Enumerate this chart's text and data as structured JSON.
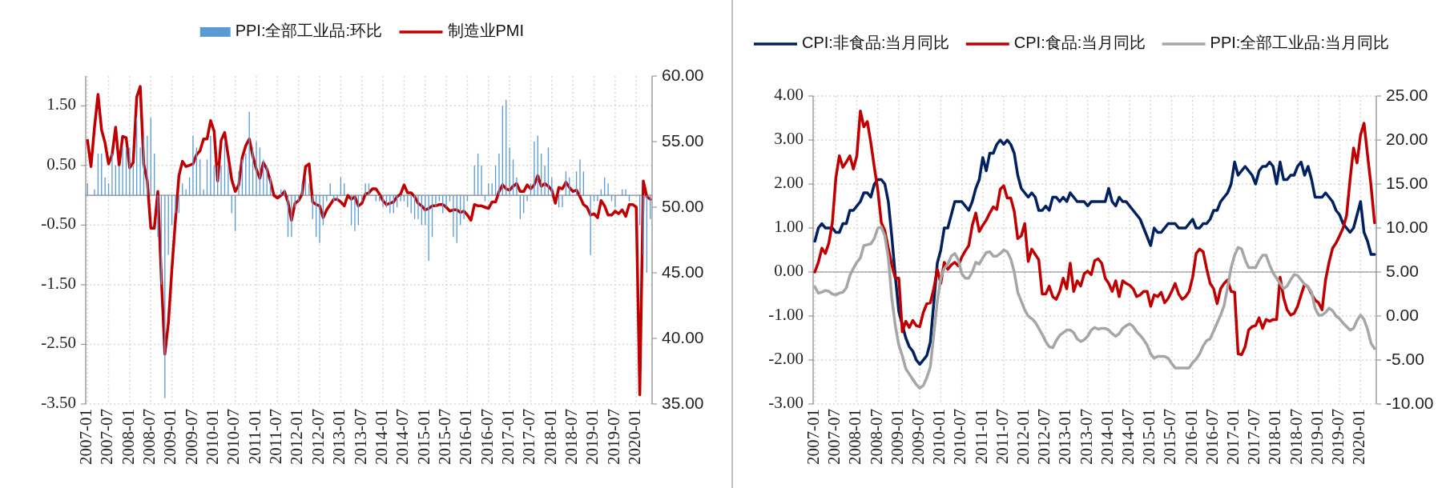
{
  "chart_data": [
    {
      "type": "bar",
      "categories": [
        "2007-01",
        null,
        null,
        null,
        null,
        null,
        "2007-07",
        null,
        null,
        null,
        null,
        null,
        "2008-01",
        null,
        null,
        null,
        null,
        null,
        "2008-07",
        null,
        null,
        null,
        null,
        null,
        "2009-01",
        null,
        null,
        null,
        null,
        null,
        "2009-07",
        null,
        null,
        null,
        null,
        null,
        "2010-01",
        null,
        null,
        null,
        null,
        null,
        "2010-07",
        null,
        null,
        null,
        null,
        null,
        "2011-01",
        null,
        null,
        null,
        null,
        null,
        "2011-07",
        null,
        null,
        null,
        null,
        null,
        "2012-01",
        null,
        null,
        null,
        null,
        null,
        "2012-07",
        null,
        null,
        null,
        null,
        null,
        "2013-01",
        null,
        null,
        null,
        null,
        null,
        "2013-07",
        null,
        null,
        null,
        null,
        null,
        "2014-01",
        null,
        null,
        null,
        null,
        null,
        "2014-07",
        null,
        null,
        null,
        null,
        null,
        "2015-01",
        null,
        null,
        null,
        null,
        null,
        "2015-07",
        null,
        null,
        null,
        null,
        null,
        "2016-01",
        null,
        null,
        null,
        null,
        null,
        "2016-07",
        null,
        null,
        null,
        null,
        null,
        "2017-01",
        null,
        null,
        null,
        null,
        null,
        "2017-07",
        null,
        null,
        null,
        null,
        null,
        "2018-01",
        null,
        null,
        null,
        null,
        null,
        "2018-07",
        null,
        null,
        null,
        null,
        null,
        "2019-01",
        null,
        null,
        null,
        null,
        null,
        "2019-07",
        null,
        null,
        null,
        null,
        null,
        "2020-01",
        null,
        null,
        null,
        null
      ],
      "series": [
        {
          "name": "PPI:全部工业品:环比",
          "color": "#5b9bd5",
          "values": [
            0.2,
            0.0,
            0.1,
            0.7,
            0.7,
            0.3,
            0.2,
            0.7,
            0.5,
            0.5,
            0.8,
            0.8,
            0.8,
            0.5,
            1.3,
            0.8,
            1.0,
            1.0,
            1.3,
            0.7,
            -0.7,
            -1.5,
            -3.4,
            -1.0,
            -0.5,
            -0.3,
            -0.3,
            0.2,
            0.1,
            0.3,
            1.0,
            0.8,
            0.6,
            0.1,
            0.6,
            1.0,
            0.5,
            0.5,
            0.5,
            0.9,
            0.5,
            -0.3,
            -0.6,
            0.4,
            0.6,
            0.7,
            1.4,
            0.8,
            0.9,
            0.8,
            0.6,
            0.5,
            0.3,
            0.0,
            0.0,
            0.1,
            0.1,
            -0.7,
            -0.7,
            -0.2,
            -0.1,
            0.2,
            0.3,
            0.2,
            -0.4,
            -0.7,
            -0.8,
            -0.5,
            -0.1,
            0.2,
            -0.1,
            -0.1,
            0.3,
            0.2,
            0.0,
            -0.5,
            -0.6,
            -0.5,
            -0.1,
            0.2,
            0.2,
            0.0,
            -0.1,
            -0.1,
            -0.2,
            -0.2,
            -0.3,
            -0.3,
            -0.2,
            -0.1,
            -0.1,
            -0.2,
            -0.3,
            -0.4,
            -0.4,
            -0.5,
            -0.5,
            -1.1,
            -0.7,
            -0.2,
            -0.1,
            -0.3,
            -0.2,
            -0.1,
            -0.7,
            -0.8,
            -0.5,
            -0.4,
            -0.1,
            0.0,
            0.5,
            0.7,
            0.5,
            -0.1,
            0.2,
            0.2,
            0.5,
            0.7,
            1.5,
            1.6,
            0.8,
            0.6,
            0.3,
            -0.4,
            -0.3,
            -0.1,
            0.2,
            0.9,
            1.0,
            0.7,
            0.5,
            0.8,
            0.3,
            0.0,
            -0.2,
            -0.2,
            0.4,
            0.3,
            0.0,
            0.4,
            0.6,
            0.4,
            0.0,
            -1.0,
            -0.1,
            -0.1,
            0.1,
            0.3,
            0.2,
            -0.1,
            -0.2,
            0.0,
            0.1,
            0.1,
            -0.1,
            0.0,
            0.0,
            -0.5,
            -1.0,
            -1.3,
            -0.4
          ]
        },
        {
          "name": "制造业PMI",
          "type": "line",
          "axis": "y2",
          "color": "#c00000",
          "values": [
            55.1,
            53.1,
            56.1,
            58.6,
            55.9,
            54.9,
            53.3,
            54.0,
            56.1,
            53.2,
            55.4,
            55.3,
            53.0,
            53.4,
            58.4,
            59.2,
            53.3,
            52.0,
            48.4,
            48.4,
            51.2,
            44.6,
            38.8,
            41.2,
            45.3,
            49.0,
            52.4,
            53.5,
            53.1,
            53.2,
            53.3,
            54.0,
            54.3,
            55.2,
            55.2,
            56.6,
            55.8,
            52.0,
            55.1,
            55.7,
            53.9,
            52.1,
            51.2,
            51.7,
            53.8,
            54.7,
            55.2,
            53.9,
            52.9,
            52.2,
            53.4,
            52.9,
            52.0,
            50.9,
            50.7,
            50.9,
            51.2,
            50.4,
            49.0,
            50.3,
            50.5,
            51.0,
            53.1,
            53.3,
            50.4,
            50.2,
            50.1,
            49.2,
            49.8,
            50.2,
            50.6,
            50.6,
            50.4,
            50.1,
            50.9,
            50.6,
            50.8,
            50.1,
            50.3,
            51.0,
            51.1,
            51.4,
            51.4,
            51.0,
            50.5,
            50.2,
            50.3,
            50.4,
            50.8,
            51.0,
            51.7,
            51.1,
            51.1,
            50.8,
            50.3,
            50.1,
            49.8,
            49.9,
            50.1,
            50.1,
            50.2,
            50.2,
            50.0,
            49.7,
            49.8,
            49.8,
            49.6,
            49.7,
            49.4,
            49.0,
            50.2,
            50.1,
            50.1,
            50.0,
            49.9,
            50.4,
            50.4,
            51.2,
            51.7,
            51.4,
            51.3,
            51.6,
            51.8,
            51.2,
            51.2,
            51.7,
            51.4,
            51.7,
            52.4,
            51.6,
            51.8,
            51.6,
            51.3,
            50.3,
            51.5,
            51.4,
            51.9,
            51.5,
            51.2,
            51.3,
            50.8,
            50.2,
            50.0,
            49.4,
            49.5,
            49.2,
            50.5,
            50.1,
            49.4,
            49.4,
            49.7,
            49.5,
            49.8,
            49.3,
            50.2,
            50.2,
            50.0,
            35.7,
            52.0,
            50.8,
            50.6
          ]
        }
      ],
      "ylim": [
        -3.5,
        2
      ],
      "yticks": [
        {
          "value": -3.5,
          "label": "-3.50"
        },
        {
          "value": -2.5,
          "label": "-2.50"
        },
        {
          "value": -1.5,
          "label": "-1.50"
        },
        {
          "value": -0.5,
          "label": "-0.50"
        },
        {
          "value": 0.5,
          "label": "0.50"
        },
        {
          "value": 1.5,
          "label": "1.50"
        }
      ],
      "y2lim": [
        35,
        60
      ],
      "y2ticks": [
        {
          "value": 35,
          "label": "35.00"
        },
        {
          "value": 40,
          "label": "40.00"
        },
        {
          "value": 45,
          "label": "45.00"
        },
        {
          "value": 50,
          "label": "50.00"
        },
        {
          "value": 55,
          "label": "55.00"
        },
        {
          "value": 60,
          "label": "60.00"
        }
      ],
      "grid": true,
      "legend": "top"
    },
    {
      "type": "line",
      "categories": [
        "2007-01",
        null,
        null,
        null,
        null,
        null,
        "2007-07",
        null,
        null,
        null,
        null,
        null,
        "2008-01",
        null,
        null,
        null,
        null,
        null,
        "2008-07",
        null,
        null,
        null,
        null,
        null,
        "2009-01",
        null,
        null,
        null,
        null,
        null,
        "2009-07",
        null,
        null,
        null,
        null,
        null,
        "2010-01",
        null,
        null,
        null,
        null,
        null,
        "2010-07",
        null,
        null,
        null,
        null,
        null,
        "2011-01",
        null,
        null,
        null,
        null,
        null,
        "2011-07",
        null,
        null,
        null,
        null,
        null,
        "2012-01",
        null,
        null,
        null,
        null,
        null,
        "2012-07",
        null,
        null,
        null,
        null,
        null,
        "2013-01",
        null,
        null,
        null,
        null,
        null,
        "2013-07",
        null,
        null,
        null,
        null,
        null,
        "2014-01",
        null,
        null,
        null,
        null,
        null,
        "2014-07",
        null,
        null,
        null,
        null,
        null,
        "2015-01",
        null,
        null,
        null,
        null,
        null,
        "2015-07",
        null,
        null,
        null,
        null,
        null,
        "2016-01",
        null,
        null,
        null,
        null,
        null,
        "2016-07",
        null,
        null,
        null,
        null,
        null,
        "2017-01",
        null,
        null,
        null,
        null,
        null,
        "2017-07",
        null,
        null,
        null,
        null,
        null,
        "2018-01",
        null,
        null,
        null,
        null,
        null,
        "2018-07",
        null,
        null,
        null,
        null,
        null,
        "2019-01",
        null,
        null,
        null,
        null,
        null,
        "2019-07",
        null,
        null,
        null,
        null,
        null,
        "2020-01",
        null,
        null,
        null,
        null
      ],
      "series": [
        {
          "name": "CPI:非食品:当月同比",
          "color": "#002060",
          "values": [
            0.7,
            1.0,
            1.1,
            1.0,
            1.0,
            1.0,
            0.9,
            0.9,
            1.1,
            1.1,
            1.4,
            1.4,
            1.5,
            1.6,
            1.8,
            1.8,
            1.7,
            2.0,
            2.1,
            2.1,
            2.0,
            1.6,
            0.8,
            -0.1,
            -0.9,
            -1.2,
            -1.5,
            -1.7,
            -1.8,
            -2.0,
            -2.1,
            -2.0,
            -1.9,
            -1.6,
            -0.7,
            0.2,
            0.5,
            1.0,
            1.0,
            1.3,
            1.6,
            1.6,
            1.6,
            1.5,
            1.4,
            1.6,
            1.9,
            2.1,
            2.6,
            2.3,
            2.7,
            2.7,
            2.9,
            3.0,
            2.9,
            3.0,
            2.9,
            2.7,
            2.2,
            1.9,
            1.8,
            1.7,
            1.8,
            1.7,
            1.4,
            1.4,
            1.5,
            1.4,
            1.7,
            1.7,
            1.6,
            1.7,
            1.6,
            1.8,
            1.7,
            1.6,
            1.6,
            1.6,
            1.5,
            1.6,
            1.6,
            1.6,
            1.6,
            1.6,
            1.9,
            1.6,
            1.5,
            1.7,
            1.6,
            1.6,
            1.5,
            1.4,
            1.3,
            1.2,
            1.0,
            0.8,
            0.6,
            1.0,
            0.9,
            0.9,
            1.0,
            1.1,
            1.1,
            1.1,
            1.0,
            1.0,
            1.0,
            1.1,
            1.2,
            1.0,
            1.0,
            1.1,
            1.1,
            1.2,
            1.4,
            1.4,
            1.6,
            1.7,
            1.8,
            2.0,
            2.5,
            2.2,
            2.3,
            2.4,
            2.3,
            2.2,
            2.0,
            2.3,
            2.4,
            2.4,
            2.5,
            2.4,
            2.0,
            2.5,
            2.1,
            2.1,
            2.2,
            2.2,
            2.4,
            2.5,
            2.2,
            2.4,
            2.1,
            1.7,
            1.7,
            1.7,
            1.8,
            1.7,
            1.6,
            1.4,
            1.3,
            1.1,
            1.0,
            0.9,
            1.0,
            1.3,
            1.6,
            0.9,
            0.7,
            0.4,
            0.4
          ]
        },
        {
          "name": "CPI:食品:当月同比",
          "axis": "y2",
          "color": "#c00000",
          "values": [
            5.0,
            6.1,
            7.7,
            7.1,
            8.3,
            10.6,
            15.7,
            18.2,
            16.9,
            17.5,
            18.2,
            16.7,
            18.2,
            23.3,
            21.5,
            22.1,
            19.7,
            16.9,
            14.3,
            10.6,
            9.7,
            7.7,
            5.8,
            4.3,
            4.3,
            -1.8,
            -0.6,
            -1.3,
            -0.5,
            -1.1,
            -1.2,
            0.4,
            1.4,
            1.5,
            3.1,
            5.3,
            3.7,
            6.1,
            5.3,
            5.8,
            6.1,
            5.7,
            6.7,
            7.4,
            8.0,
            10.3,
            11.7,
            9.6,
            10.3,
            10.9,
            11.7,
            12.4,
            12.1,
            14.4,
            14.8,
            13.4,
            13.4,
            11.9,
            8.8,
            9.1,
            10.5,
            6.2,
            7.6,
            7.0,
            6.4,
            2.5,
            2.5,
            3.4,
            2.2,
            1.9,
            2.8,
            4.3,
            3.1,
            6.0,
            2.8,
            4.0,
            3.4,
            4.8,
            5.1,
            4.7,
            6.3,
            6.5,
            6.0,
            4.3,
            3.7,
            2.8,
            4.0,
            2.2,
            4.0,
            3.7,
            3.5,
            3.1,
            2.2,
            2.4,
            2.8,
            2.8,
            1.1,
            2.4,
            2.2,
            2.7,
            1.5,
            2.0,
            2.8,
            3.7,
            2.5,
            1.9,
            2.2,
            2.8,
            4.4,
            7.1,
            7.6,
            7.3,
            5.4,
            3.7,
            3.1,
            1.4,
            3.1,
            3.7,
            4.1,
            2.8,
            2.7,
            -4.3,
            -4.4,
            -3.5,
            -1.6,
            -1.2,
            -1.1,
            -0.2,
            -1.4,
            -0.4,
            -0.6,
            -0.4,
            -0.4,
            4.4,
            2.1,
            0.7,
            0.1,
            0.3,
            1.1,
            2.4,
            3.6,
            3.3,
            2.5,
            1.8,
            1.5,
            0.7,
            4.1,
            6.1,
            7.7,
            8.3,
            9.1,
            10.0,
            11.4,
            15.5,
            19.1,
            17.4,
            20.6,
            21.9,
            18.3,
            14.8,
            10.6
          ]
        },
        {
          "name": "PPI:全部工业品:当月同比",
          "axis": "y2",
          "color": "#a6a6a6",
          "values": [
            3.3,
            2.6,
            2.7,
            2.9,
            2.8,
            2.5,
            2.4,
            2.6,
            2.7,
            3.2,
            4.6,
            5.4,
            6.1,
            6.6,
            8.0,
            8.1,
            8.2,
            8.8,
            10.0,
            10.1,
            9.1,
            6.6,
            2.0,
            -1.1,
            -3.3,
            -4.5,
            -6.0,
            -6.6,
            -7.2,
            -7.8,
            -8.2,
            -7.9,
            -7.0,
            -5.8,
            -2.1,
            1.7,
            4.3,
            5.4,
            5.9,
            6.8,
            7.1,
            6.4,
            4.8,
            4.3,
            4.3,
            5.0,
            6.1,
            5.9,
            6.6,
            7.2,
            7.3,
            6.8,
            6.8,
            7.1,
            7.5,
            7.3,
            6.5,
            5.0,
            2.7,
            1.7,
            0.7,
            0.0,
            -0.3,
            -0.7,
            -1.4,
            -2.1,
            -2.9,
            -3.5,
            -3.6,
            -2.8,
            -2.2,
            -1.9,
            -1.6,
            -1.6,
            -1.9,
            -2.6,
            -2.9,
            -2.7,
            -2.3,
            -1.6,
            -1.3,
            -1.5,
            -1.4,
            -1.4,
            -1.6,
            -2.0,
            -2.3,
            -2.0,
            -1.4,
            -1.1,
            -0.9,
            -1.2,
            -1.8,
            -2.2,
            -2.7,
            -3.3,
            -4.3,
            -4.8,
            -4.6,
            -4.6,
            -4.6,
            -4.8,
            -5.4,
            -5.9,
            -5.9,
            -5.9,
            -5.9,
            -5.9,
            -5.3,
            -4.9,
            -4.3,
            -3.4,
            -2.8,
            -2.6,
            -1.7,
            -0.8,
            0.1,
            1.2,
            3.3,
            5.5,
            6.9,
            7.8,
            7.6,
            6.4,
            5.5,
            5.5,
            5.5,
            6.3,
            6.9,
            6.9,
            5.8,
            4.9,
            4.3,
            3.7,
            3.1,
            3.4,
            4.1,
            4.7,
            4.6,
            4.1,
            3.6,
            3.3,
            2.7,
            0.9,
            0.1,
            0.1,
            0.4,
            0.9,
            0.6,
            0.0,
            -0.3,
            -0.8,
            -1.2,
            -1.6,
            -1.4,
            -0.5,
            0.1,
            -0.4,
            -1.5,
            -3.1,
            -3.7
          ]
        }
      ],
      "ylim": [
        -3,
        4
      ],
      "yticks": [
        {
          "value": -3,
          "label": "-3.00"
        },
        {
          "value": -2,
          "label": "-2.00"
        },
        {
          "value": -1,
          "label": "-1.00"
        },
        {
          "value": 0,
          "label": "0.00"
        },
        {
          "value": 1,
          "label": "1.00"
        },
        {
          "value": 2,
          "label": "2.00"
        },
        {
          "value": 3,
          "label": "3.00"
        },
        {
          "value": 4,
          "label": "4.00"
        }
      ],
      "y2lim": [
        -10,
        25
      ],
      "y2ticks": [
        {
          "value": -10,
          "label": "-10.00"
        },
        {
          "value": -5,
          "label": "-5.00"
        },
        {
          "value": 0,
          "label": "0.00"
        },
        {
          "value": 5,
          "label": "5.00"
        },
        {
          "value": 10,
          "label": "10.00"
        },
        {
          "value": 15,
          "label": "15.00"
        },
        {
          "value": 20,
          "label": "20.00"
        },
        {
          "value": 25,
          "label": "25.00"
        }
      ],
      "grid": true,
      "legend": "top"
    }
  ]
}
